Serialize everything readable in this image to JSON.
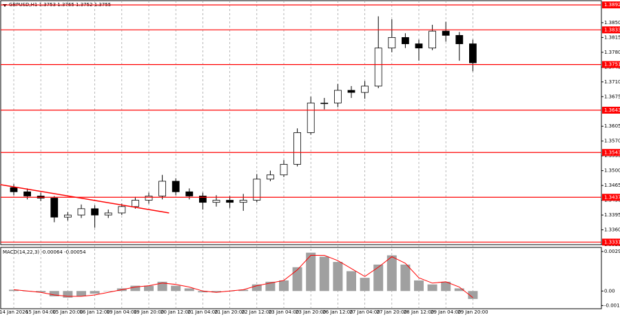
{
  "chart_data": [
    {
      "type": "candlestick",
      "title": "GBPUSD,H1  1.3753 1.3765 1.3752 1.3755",
      "categories": [
        "14 Jan 2026",
        null,
        "15 Jan 04:00",
        null,
        "15 Jan 20:00",
        null,
        "16 Jan 12:00",
        null,
        "19 Jan 04:00",
        null,
        "19 Jan 20:00",
        null,
        "20 Jan 12:00",
        null,
        "21 Jan 04:00",
        null,
        "21 Jan 20:00",
        null,
        "22 Jan 12:00",
        null,
        "23 Jan 04:00",
        null,
        "23 Jan 20:00",
        null,
        "26 Jan 12:00",
        null,
        "27 Jan 04:00",
        null,
        "27 Jan 20:00",
        null,
        "28 Jan 12:00",
        null,
        "29 Jan 04:00",
        null,
        "29 Jan 20:00"
      ],
      "open": [
        1.346,
        1.345,
        1.344,
        1.3435,
        1.339,
        1.3395,
        1.341,
        1.3395,
        1.34,
        1.3415,
        1.343,
        1.344,
        1.3475,
        1.345,
        1.344,
        1.3425,
        1.343,
        1.3425,
        1.343,
        1.348,
        1.349,
        1.3515,
        1.359,
        1.366,
        1.366,
        1.369,
        1.3685,
        1.37,
        1.379,
        1.3815,
        1.38,
        1.379,
        1.383,
        1.382,
        1.38
      ],
      "high": [
        1.3468,
        1.3458,
        1.3448,
        1.344,
        1.3402,
        1.342,
        1.3418,
        1.3408,
        1.3422,
        1.3438,
        1.3448,
        1.349,
        1.3482,
        1.3458,
        1.3448,
        1.3442,
        1.344,
        1.3445,
        1.3492,
        1.35,
        1.3525,
        1.36,
        1.3675,
        1.3672,
        1.3705,
        1.37,
        1.3712,
        1.3865,
        1.3858,
        1.3825,
        1.381,
        1.3845,
        1.3852,
        1.3828,
        1.381
      ],
      "low": [
        1.3442,
        1.3432,
        1.3428,
        1.3378,
        1.3382,
        1.3388,
        1.3365,
        1.3388,
        1.3395,
        1.341,
        1.3422,
        1.3432,
        1.3442,
        1.3432,
        1.3408,
        1.3415,
        1.3412,
        1.3405,
        1.3425,
        1.3475,
        1.3485,
        1.351,
        1.3585,
        1.3645,
        1.365,
        1.3672,
        1.367,
        1.3695,
        1.378,
        1.379,
        1.376,
        1.3785,
        1.3805,
        1.376,
        1.3735
      ],
      "close": [
        1.345,
        1.344,
        1.3435,
        1.339,
        1.3395,
        1.341,
        1.3395,
        1.34,
        1.3415,
        1.343,
        1.344,
        1.3475,
        1.345,
        1.344,
        1.3425,
        1.343,
        1.3425,
        1.343,
        1.348,
        1.349,
        1.3515,
        1.359,
        1.366,
        1.366,
        1.369,
        1.3685,
        1.37,
        1.379,
        1.3815,
        1.38,
        1.379,
        1.383,
        1.382,
        1.38,
        1.3755
      ],
      "up_color": "#ffffff",
      "down_color": "#000000",
      "ylim": [
        1.3325,
        1.3902
      ],
      "yticks": [
        {
          "value": 1.385,
          "label": "1.3850"
        },
        1.3815,
        {
          "value": 1.378,
          "label": "1.3780"
        },
        1.3745,
        {
          "value": 1.371,
          "label": "1.3710"
        },
        1.3675,
        1.3605,
        {
          "value": 1.357,
          "label": "1.3570"
        },
        1.3535,
        {
          "value": 1.35,
          "label": "1.3500"
        },
        1.3465,
        {
          "value": 1.343,
          "label": "1.3430"
        },
        1.3395,
        {
          "value": 1.336,
          "label": "1.3360"
        },
        1.3325
      ],
      "levels": {
        "values": [
          1.3892,
          1.3833,
          1.3751,
          1.3643,
          1.3543,
          1.3437,
          1.3331
        ],
        "color": "#ff0000"
      },
      "trendline": {
        "x": [
          -1,
          11.5
        ],
        "values": [
          1.3467,
          1.34
        ],
        "color": "#ff0000"
      }
    },
    {
      "type": "macd",
      "title": "MACD(14,22,3) -0.00064 -0.00054",
      "values": [
        0.0001,
        0.0,
        -0.0001,
        -0.0004,
        -0.0005,
        -0.0004,
        -0.0002,
        0.0,
        0.0002,
        0.0004,
        0.0004,
        0.0007,
        0.0004,
        0.0002,
        -0.0001,
        -0.0001,
        0.0,
        0.0001,
        0.0005,
        0.0007,
        0.0008,
        0.0018,
        0.0029,
        0.0026,
        0.0022,
        0.0015,
        0.001,
        0.002,
        0.0027,
        0.002,
        0.0008,
        0.0005,
        0.0007,
        0.0002,
        -0.0006
      ],
      "signal": [
        0.0001,
        0.0,
        -0.0001,
        -0.0003,
        -0.0004,
        -0.0004,
        -0.0003,
        -0.0001,
        0.0001,
        0.0003,
        0.0004,
        0.0006,
        0.0005,
        0.0003,
        0.0,
        -0.0001,
        0.0,
        0.0001,
        0.0004,
        0.0006,
        0.0008,
        0.0016,
        0.0027,
        0.0027,
        0.0023,
        0.0017,
        0.0011,
        0.0018,
        0.0026,
        0.0021,
        0.001,
        0.0006,
        0.0007,
        0.0003,
        -0.0005
      ],
      "color": "#a0a0a0",
      "signal_color": "#ff0000",
      "ylim": [
        -0.00134,
        0.0033
      ],
      "yticks": [
        0.00299,
        {
          "value": 0,
          "label": "0.00"
        },
        -0.0011
      ]
    }
  ]
}
